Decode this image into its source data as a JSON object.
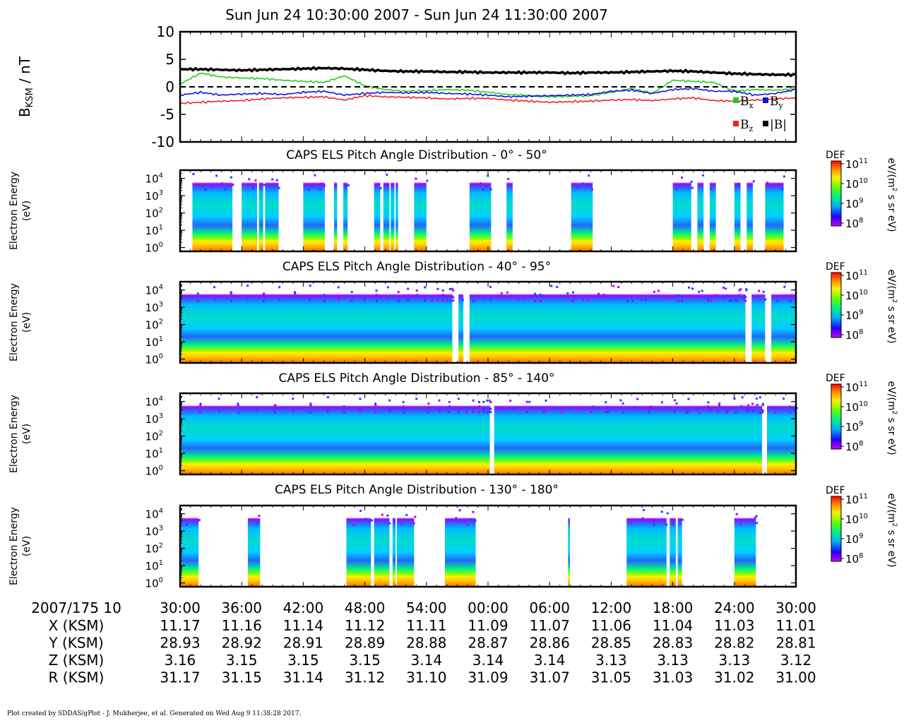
{
  "header": {
    "title": "Sun Jun 24 10:30:00 2007 - Sun Jun 24 11:30:00 2007"
  },
  "colors": {
    "bx": "#22cc22",
    "by": "#1111dd",
    "bz": "#ee2222",
    "btotal": "#000000",
    "spectrogram_scale": [
      "#cc00ff",
      "#2200ff",
      "#00aaff",
      "#00ee88",
      "#66ff00",
      "#ffee00",
      "#ff8800",
      "#ff0000"
    ]
  },
  "chart_data": [
    {
      "type": "line",
      "ylabel": "BKSM / nT",
      "ylim": [
        -10,
        10
      ],
      "yticks": [
        10,
        5,
        0,
        -5,
        -10
      ],
      "grid": false,
      "zero_line": "dashed",
      "legend_placement": "right",
      "x_unit": "minutes after 10:30",
      "series": [
        {
          "name": "Bx",
          "color": "#22cc22",
          "x": [
            0,
            2,
            4,
            6,
            8,
            10,
            12,
            14,
            16,
            18,
            20,
            22,
            24,
            26,
            28,
            30,
            32,
            34,
            36,
            38,
            40,
            42,
            44,
            46,
            48,
            50,
            52,
            54,
            56,
            58,
            60
          ],
          "values": [
            0.5,
            2.5,
            1.8,
            1.6,
            1.5,
            1.2,
            1.0,
            0.8,
            2.0,
            0.2,
            -0.5,
            -0.8,
            -0.7,
            -0.5,
            -0.6,
            -1.0,
            -1.4,
            -1.6,
            -1.8,
            -1.7,
            -1.6,
            -1.0,
            -0.3,
            -1.2,
            1.2,
            1.0,
            0.8,
            -0.8,
            -0.5,
            -0.6,
            -0.4
          ]
        },
        {
          "name": "By",
          "color": "#1111dd",
          "x": [
            0,
            2,
            4,
            6,
            8,
            10,
            12,
            14,
            16,
            18,
            20,
            22,
            24,
            26,
            28,
            30,
            32,
            34,
            36,
            38,
            40,
            42,
            44,
            46,
            48,
            50,
            52,
            54,
            56,
            58,
            60
          ],
          "values": [
            -1.5,
            -1.0,
            -1.5,
            -1.3,
            -1.2,
            -1.4,
            -1.0,
            -0.8,
            -1.5,
            -1.2,
            -1.0,
            -1.1,
            -1.0,
            -1.2,
            -1.3,
            -1.5,
            -1.8,
            -1.7,
            -1.6,
            -1.5,
            -1.4,
            -0.8,
            -0.6,
            -1.2,
            -0.5,
            -0.3,
            -0.8,
            -0.8,
            -1.5,
            -1.2,
            -0.5
          ]
        },
        {
          "name": "Bz",
          "color": "#ee2222",
          "x": [
            0,
            2,
            4,
            6,
            8,
            10,
            12,
            14,
            16,
            18,
            20,
            22,
            24,
            26,
            28,
            30,
            32,
            34,
            36,
            38,
            40,
            42,
            44,
            46,
            48,
            50,
            52,
            54,
            56,
            58,
            60
          ],
          "values": [
            -3.0,
            -2.8,
            -2.6,
            -2.5,
            -2.2,
            -2.0,
            -1.9,
            -1.8,
            -2.4,
            -1.6,
            -1.8,
            -1.9,
            -2.0,
            -2.2,
            -2.1,
            -2.1,
            -2.4,
            -2.6,
            -2.8,
            -2.7,
            -2.6,
            -2.4,
            -2.3,
            -2.5,
            -2.2,
            -2.0,
            -2.5,
            -2.6,
            -2.4,
            -2.2,
            -2.0
          ]
        },
        {
          "name": "|B|",
          "color": "#000000",
          "x": [
            0,
            2,
            4,
            6,
            8,
            10,
            12,
            14,
            16,
            18,
            20,
            22,
            24,
            26,
            28,
            30,
            32,
            34,
            36,
            38,
            40,
            42,
            44,
            46,
            48,
            50,
            52,
            54,
            56,
            58,
            60
          ],
          "values": [
            3.2,
            3.2,
            3.1,
            3.0,
            3.1,
            3.2,
            3.3,
            3.4,
            3.3,
            3.1,
            2.9,
            2.8,
            2.8,
            2.7,
            2.7,
            2.6,
            2.6,
            2.6,
            2.6,
            2.5,
            2.6,
            2.6,
            2.7,
            2.8,
            2.9,
            2.8,
            2.6,
            2.4,
            2.3,
            2.2,
            2.2
          ]
        }
      ],
      "legend": {
        "bx": "B",
        "bx_sub": "x",
        "by": "B",
        "by_sub": "y",
        "bz": "B",
        "bz_sub": "z",
        "btotal": "|B|"
      },
      "ylabel_main": "B",
      "ylabel_sub": "KSM",
      "ylabel_rest": " / nT"
    },
    {
      "type": "heatmap",
      "title": "CAPS ELS Pitch Angle Distribution - 0° - 50°",
      "ylabel": [
        "Electron Energy",
        "(eV)"
      ],
      "yscale": "log",
      "ylim": [
        0.6,
        30000
      ],
      "yticks": [
        "10",
        "10",
        "10",
        "10",
        "10"
      ],
      "ytick_exp": [
        "4",
        "3",
        "2",
        "1",
        "0"
      ],
      "data_segments": [
        [
          2,
          8.5
        ],
        [
          10,
          12.5
        ],
        [
          12.8,
          13.5
        ],
        [
          13.8,
          16
        ],
        [
          20,
          23.5
        ],
        [
          25,
          25.5
        ],
        [
          26.5,
          27.2
        ],
        [
          31.5,
          32.5
        ],
        [
          33,
          34
        ],
        [
          34.2,
          34.8
        ],
        [
          35,
          35.4
        ],
        [
          38,
          40
        ],
        [
          47,
          50.5
        ],
        [
          53,
          54
        ],
        [
          63.5,
          67
        ],
        [
          80,
          83
        ],
        [
          84,
          85
        ],
        [
          86,
          87
        ],
        [
          90,
          91
        ],
        [
          92,
          93
        ],
        [
          95,
          98
        ]
      ],
      "colorbar": {
        "label": "DEF",
        "unit": [
          "eV/(m",
          "2",
          " s sr eV)"
        ],
        "ticks": [
          "10",
          "10",
          "10",
          "10"
        ],
        "tick_exp": [
          "11",
          "10",
          "9",
          "8"
        ]
      }
    },
    {
      "type": "heatmap",
      "title": "CAPS ELS Pitch Angle Distribution - 40° - 95°",
      "ylabel": [
        "Electron Energy",
        "(eV)"
      ],
      "yscale": "log",
      "ylim": [
        0.6,
        30000
      ],
      "yticks": [
        "10",
        "10",
        "10",
        "10",
        "10"
      ],
      "ytick_exp": [
        "4",
        "3",
        "2",
        "1",
        "0"
      ],
      "data_segments": [
        [
          0,
          44.2
        ],
        [
          45.2,
          46
        ],
        [
          47,
          91.8
        ],
        [
          92.8,
          95
        ],
        [
          96,
          100
        ]
      ],
      "colorbar": {
        "label": "DEF",
        "unit": [
          "eV/(m",
          "2",
          " s sr eV)"
        ],
        "ticks": [
          "10",
          "10",
          "10",
          "10"
        ],
        "tick_exp": [
          "11",
          "10",
          "9",
          "8"
        ]
      }
    },
    {
      "type": "heatmap",
      "title": "CAPS ELS Pitch Angle Distribution - 85° - 140°",
      "ylabel": [
        "Electron Energy",
        "(eV)"
      ],
      "yscale": "log",
      "ylim": [
        0.6,
        30000
      ],
      "yticks": [
        "10",
        "10",
        "10",
        "10",
        "10"
      ],
      "ytick_exp": [
        "4",
        "3",
        "2",
        "1",
        "0"
      ],
      "data_segments": [
        [
          0,
          50.3
        ],
        [
          51,
          94.5
        ],
        [
          95.3,
          100
        ]
      ],
      "colorbar": {
        "label": "DEF",
        "unit": [
          "eV/(m",
          "2",
          " s sr eV)"
        ],
        "ticks": [
          "10",
          "10",
          "10",
          "10"
        ],
        "tick_exp": [
          "11",
          "10",
          "9",
          "8"
        ]
      }
    },
    {
      "type": "heatmap",
      "title": "CAPS ELS Pitch Angle Distribution - 130° - 180°",
      "ylabel": [
        "Electron Energy",
        "(eV)"
      ],
      "yscale": "log",
      "ylim": [
        0.6,
        30000
      ],
      "yticks": [
        "10",
        "10",
        "10",
        "10",
        "10"
      ],
      "ytick_exp": [
        "4",
        "3",
        "2",
        "1",
        "0"
      ],
      "data_segments": [
        [
          0,
          3
        ],
        [
          11,
          13
        ],
        [
          27,
          31
        ],
        [
          31.5,
          34
        ],
        [
          34.5,
          35
        ],
        [
          35.2,
          38
        ],
        [
          43,
          48
        ],
        [
          63,
          63.3
        ],
        [
          72.5,
          79
        ],
        [
          79.5,
          80.5
        ],
        [
          80.8,
          81.5
        ],
        [
          90,
          93.5
        ]
      ],
      "colorbar": {
        "label": "DEF",
        "unit": [
          "eV/(m",
          "2",
          " s sr eV)"
        ],
        "ticks": [
          "10",
          "10",
          "10",
          "10"
        ],
        "tick_exp": [
          "11",
          "10",
          "9",
          "8"
        ]
      }
    }
  ],
  "time_axis": {
    "row_label": "2007/175 10",
    "ticks": [
      "30:00",
      "36:00",
      "42:00",
      "48:00",
      "54:00",
      "00:00",
      "06:00",
      "12:00",
      "18:00",
      "24:00",
      "30:00"
    ]
  },
  "ephemeris": [
    {
      "label": "X (KSM)",
      "values": [
        "11.17",
        "11.16",
        "11.14",
        "11.12",
        "11.11",
        "11.09",
        "11.07",
        "11.06",
        "11.04",
        "11.03",
        "11.01"
      ]
    },
    {
      "label": "Y (KSM)",
      "values": [
        "28.93",
        "28.92",
        "28.91",
        "28.89",
        "28.88",
        "28.87",
        "28.86",
        "28.85",
        "28.83",
        "28.82",
        "28.81"
      ]
    },
    {
      "label": "Z (KSM)",
      "values": [
        "3.16",
        "3.15",
        "3.15",
        "3.15",
        "3.14",
        "3.14",
        "3.14",
        "3.13",
        "3.13",
        "3.13",
        "3.12"
      ]
    },
    {
      "label": "R (KSM)",
      "values": [
        "31.17",
        "31.15",
        "31.14",
        "31.12",
        "31.10",
        "31.09",
        "31.07",
        "31.05",
        "31.03",
        "31.02",
        "31.00"
      ]
    }
  ],
  "footer": {
    "text": "Plot created by SDDAS/gPlot - J. Mukherjee, et al.  Generated on Wed Aug 9 11:38:28 2017."
  }
}
